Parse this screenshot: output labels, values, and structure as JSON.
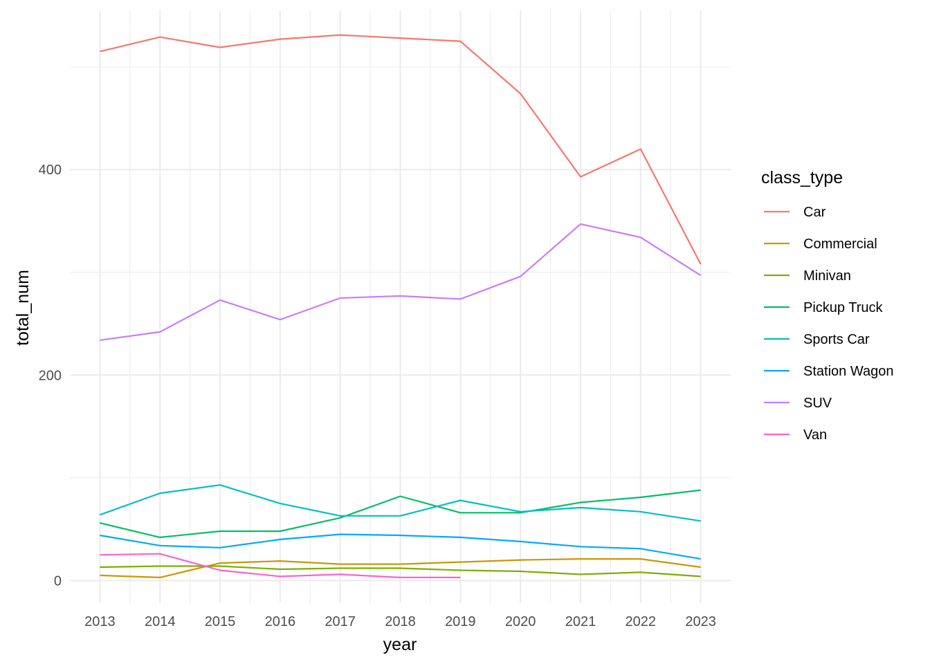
{
  "chart_data": {
    "type": "line",
    "title": "",
    "xlabel": "year",
    "ylabel": "total_num",
    "x": [
      2013,
      2014,
      2015,
      2016,
      2017,
      2018,
      2019,
      2020,
      2021,
      2022,
      2023
    ],
    "x_tick_labels": [
      "2013",
      "2014",
      "2015",
      "2016",
      "2017",
      "2018",
      "2019",
      "2020",
      "2021",
      "2022",
      "2023"
    ],
    "y_ticks": [
      0,
      200,
      400
    ],
    "y_tick_labels": [
      "0",
      "200",
      "400"
    ],
    "xlim": [
      2012.5,
      2023.5
    ],
    "ylim": [
      -22,
      555
    ],
    "grid": true,
    "legend_title": "class_type",
    "legend_position": "right",
    "series": [
      {
        "name": "Car",
        "color": "#F8766D",
        "values": [
          515,
          529,
          519,
          527,
          531,
          528,
          525,
          474,
          393,
          420,
          308
        ]
      },
      {
        "name": "Commercial",
        "color": "#CD9600",
        "values": [
          5,
          3,
          17,
          19,
          16,
          16,
          18,
          20,
          21,
          21,
          13
        ]
      },
      {
        "name": "Minivan",
        "color": "#7CAE00",
        "values": [
          13,
          14,
          14,
          11,
          12,
          12,
          10,
          9,
          6,
          8,
          4
        ]
      },
      {
        "name": "Pickup Truck",
        "color": "#00BE67",
        "values": [
          56,
          42,
          48,
          48,
          61,
          82,
          66,
          66,
          76,
          81,
          88
        ]
      },
      {
        "name": "Sports Car",
        "color": "#00BFC4",
        "values": [
          64,
          85,
          93,
          75,
          63,
          63,
          78,
          67,
          71,
          67,
          58
        ]
      },
      {
        "name": "Station Wagon",
        "color": "#00A9FF",
        "values": [
          44,
          34,
          32,
          40,
          45,
          44,
          42,
          38,
          33,
          31,
          21
        ]
      },
      {
        "name": "SUV",
        "color": "#C77CFF",
        "values": [
          234,
          242,
          273,
          254,
          275,
          277,
          274,
          296,
          347,
          334,
          297
        ]
      },
      {
        "name": "Van",
        "color": "#FF61CC",
        "values": [
          25,
          26,
          10,
          4,
          6,
          3,
          3,
          null,
          null,
          null,
          null
        ]
      }
    ]
  }
}
